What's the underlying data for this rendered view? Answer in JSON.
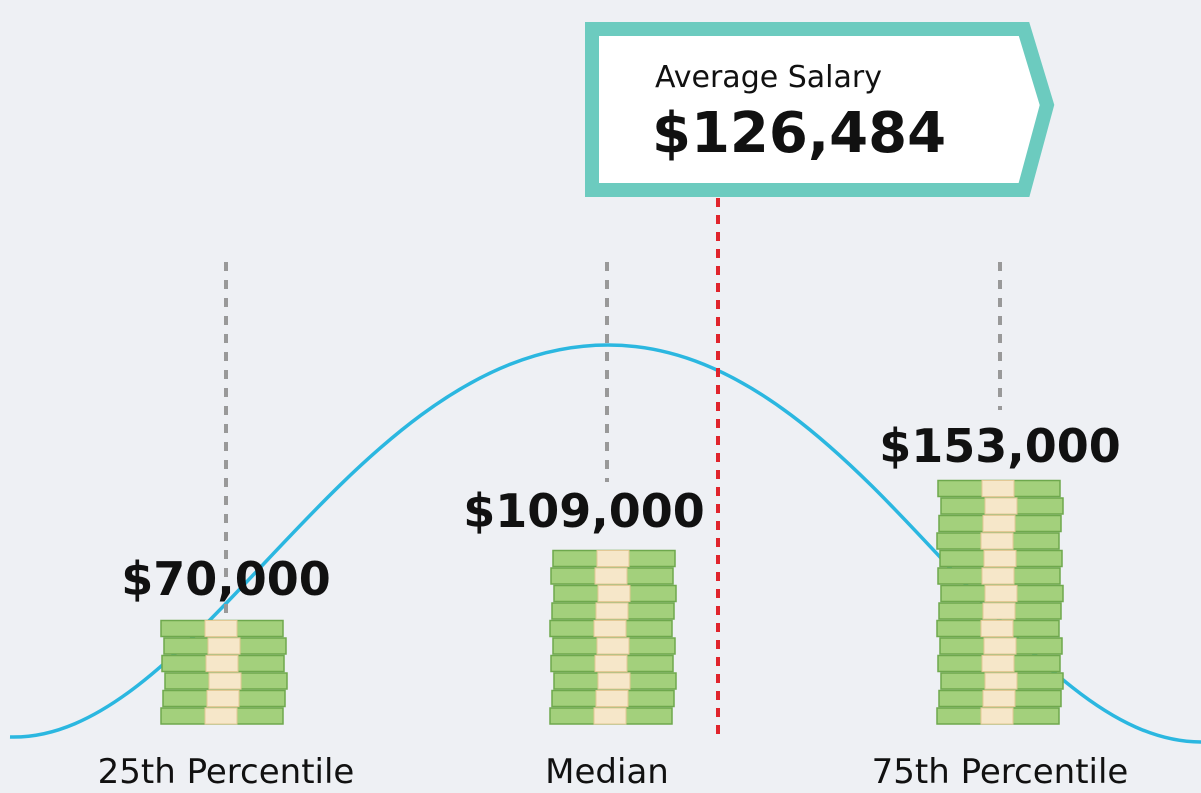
{
  "average": {
    "label": "Average Salary",
    "value": "$126,484"
  },
  "percentiles": [
    {
      "value": "$70,000",
      "label": "25th Percentile"
    },
    {
      "value": "$109,000",
      "label": "Median"
    },
    {
      "value": "$153,000",
      "label": "75th Percentile"
    }
  ]
}
